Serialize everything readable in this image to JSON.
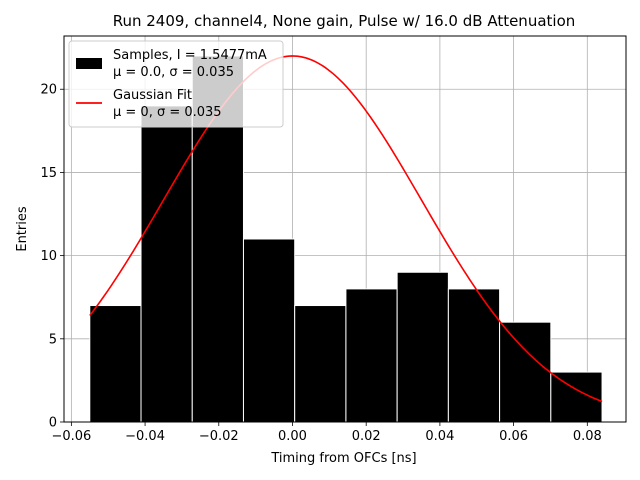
{
  "chart_data": {
    "type": "bar",
    "title": "Run 2409, channel4, None gain, Pulse w/ 16.0 dB Attenuation",
    "xlabel": "Timing from OFCs [ns]",
    "ylabel": "Entries",
    "xlim": [
      -0.062,
      0.0905
    ],
    "ylim": [
      0,
      23.2
    ],
    "xticks": [
      -0.06,
      -0.04,
      -0.02,
      0.0,
      0.02,
      0.04,
      0.06,
      0.08
    ],
    "xtick_labels": [
      "−0.06",
      "−0.04",
      "−0.02",
      "0.00",
      "0.02",
      "0.04",
      "0.06",
      "0.08"
    ],
    "yticks": [
      0,
      5,
      10,
      15,
      20
    ],
    "ytick_labels": [
      "0",
      "5",
      "10",
      "15",
      "20"
    ],
    "grid": true,
    "legend_position": "top-left",
    "histogram": {
      "name": "Samples, I = 1.5477mA",
      "stats": "μ = 0.0, σ = 0.035",
      "color": "#000000",
      "edgecolor": "#ffffff",
      "bin_edges": [
        -0.055,
        -0.0411,
        -0.0272,
        -0.0133,
        0.0006,
        0.0145,
        0.0284,
        0.0423,
        0.0562,
        0.0701,
        0.084
      ],
      "counts": [
        7,
        19,
        22,
        11,
        7,
        8,
        9,
        8,
        6,
        3
      ]
    },
    "fit": {
      "name": "Gaussian Fit",
      "stats": "μ = 0, σ = 0.035",
      "color": "#ff0000",
      "amplitude": 22,
      "mean": 0.0,
      "sigma": 0.035,
      "x_range": [
        -0.055,
        0.084
      ]
    }
  }
}
